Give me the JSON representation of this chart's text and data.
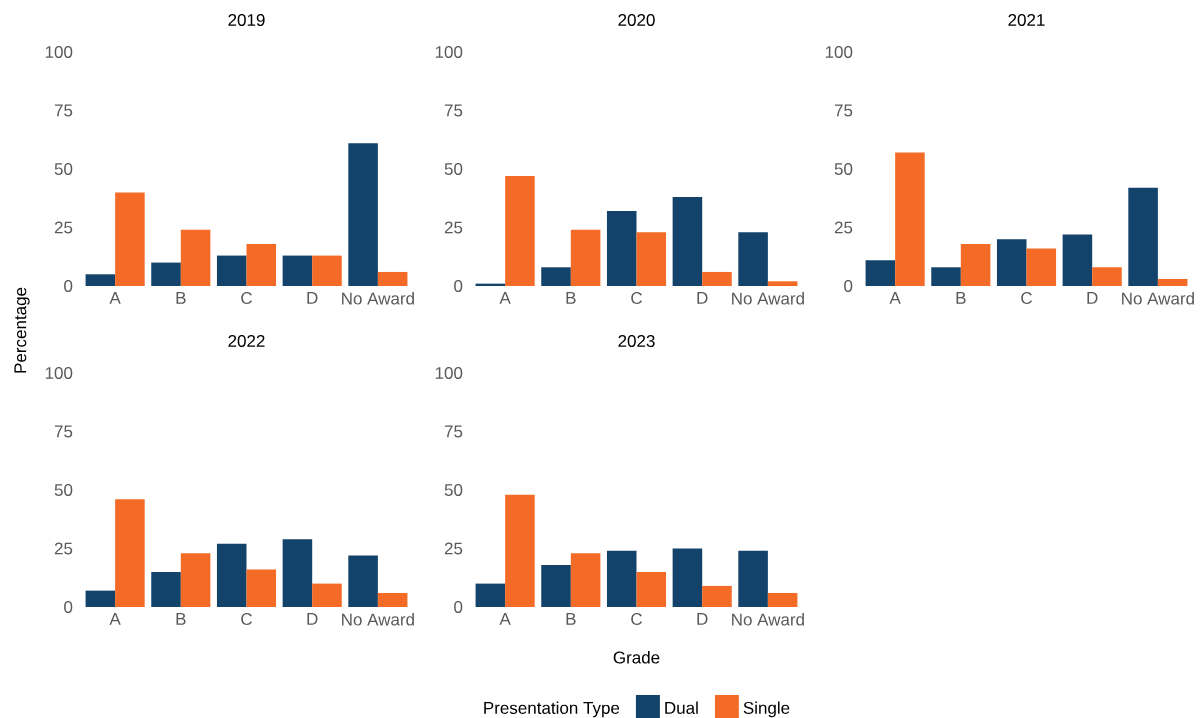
{
  "chart_data": [
    {
      "type": "bar",
      "title": "2019",
      "ylabel": "Percentage",
      "categories": [
        "A",
        "B",
        "C",
        "D",
        "No Award"
      ],
      "ylim": [
        0,
        100
      ],
      "yticks": [
        0,
        25,
        50,
        75,
        100
      ],
      "series": [
        {
          "color": "#13426b",
          "values": [
            5,
            10,
            13,
            13,
            61
          ]
        },
        {
          "color": "#f36b26",
          "values": [
            40,
            24,
            18,
            13,
            6
          ]
        }
      ]
    },
    {
      "type": "bar",
      "title": "2020",
      "categories": [
        "A",
        "B",
        "C",
        "D",
        "No Award"
      ],
      "ylim": [
        0,
        100
      ],
      "yticks": [
        0,
        25,
        50,
        75,
        100
      ],
      "series": [
        {
          "color": "#13426b",
          "values": [
            1,
            8,
            32,
            38,
            23
          ]
        },
        {
          "color": "#f36b26",
          "values": [
            47,
            24,
            23,
            6,
            2
          ]
        }
      ]
    },
    {
      "type": "bar",
      "title": "2021",
      "categories": [
        "A",
        "B",
        "C",
        "D",
        "No Award"
      ],
      "ylim": [
        0,
        100
      ],
      "yticks": [
        0,
        25,
        50,
        75,
        100
      ],
      "series": [
        {
          "color": "#13426b",
          "values": [
            11,
            8,
            20,
            22,
            42
          ]
        },
        {
          "color": "#f36b26",
          "values": [
            57,
            18,
            16,
            8,
            3
          ]
        }
      ]
    },
    {
      "type": "bar",
      "title": "2022",
      "categories": [
        "A",
        "B",
        "C",
        "D",
        "No Award"
      ],
      "ylim": [
        0,
        100
      ],
      "yticks": [
        0,
        25,
        50,
        75,
        100
      ],
      "series": [
        {
          "color": "#13426b",
          "values": [
            7,
            15,
            27,
            29,
            22
          ]
        },
        {
          "color": "#f36b26",
          "values": [
            46,
            23,
            16,
            10,
            6
          ]
        }
      ]
    },
    {
      "type": "bar",
      "title": "2023",
      "xlabel": "Grade",
      "legend_title": "Presentation Type",
      "legend": "bottom",
      "categories": [
        "A",
        "B",
        "C",
        "D",
        "No Award"
      ],
      "ylim": [
        0,
        100
      ],
      "yticks": [
        0,
        25,
        50,
        75,
        100
      ],
      "series": [
        {
          "name": "Dual",
          "color": "#13426b",
          "values": [
            10,
            18,
            24,
            25,
            24
          ]
        },
        {
          "name": "Single",
          "color": "#f36b26",
          "values": [
            48,
            23,
            15,
            9,
            6
          ]
        }
      ]
    }
  ]
}
